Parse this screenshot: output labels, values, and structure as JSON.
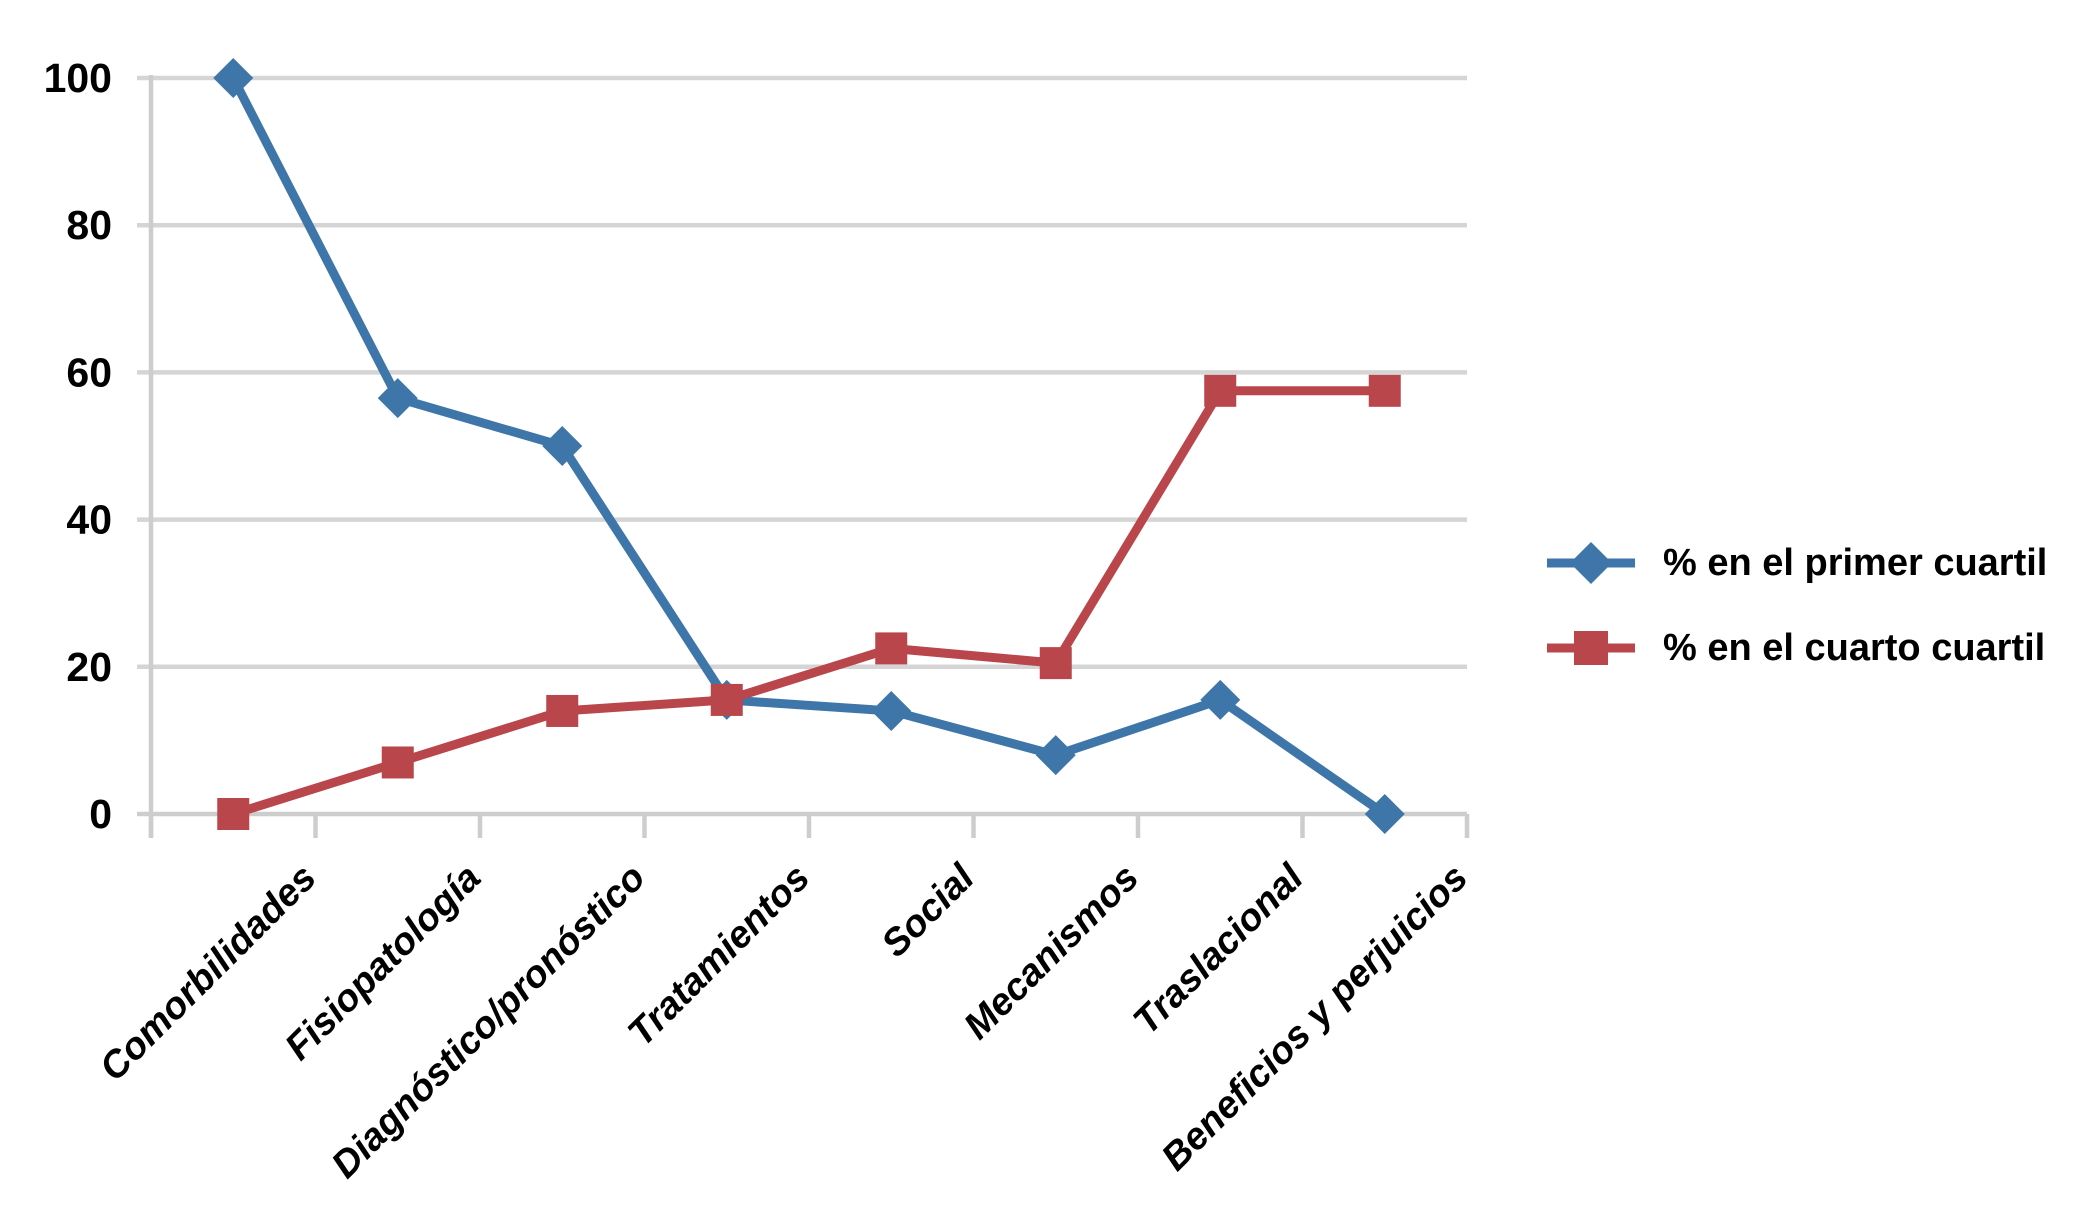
{
  "chart_data": {
    "type": "line",
    "title": "",
    "categories": [
      "Comorbilidades",
      "Fisiopatología",
      "Diagnóstico/pronóstico",
      "Tratamientos",
      "Social",
      "Mecanismos",
      "Traslacional",
      "Beneficios y perjuicios"
    ],
    "series": [
      {
        "name": "% en el primer cuartil",
        "marker": "diamond",
        "color": "#3E76AA",
        "values": [
          100,
          56.5,
          50,
          15.5,
          14,
          8,
          15.5,
          0
        ]
      },
      {
        "name": "% en el cuarto cuartil",
        "marker": "square",
        "color": "#B9464B",
        "values": [
          0,
          7,
          14,
          15.5,
          22.5,
          20.5,
          57.5,
          57.5
        ]
      }
    ],
    "xlabel": "",
    "ylabel": "",
    "y_axis": {
      "ticks": [
        0,
        20,
        40,
        60,
        80,
        100
      ],
      "range": [
        0,
        100
      ]
    },
    "x_axis": {
      "label_rotation_deg": -45
    },
    "grid": true,
    "legend_position": "right",
    "colors": {
      "gridline": "#D5D5D5",
      "axis": "#CDCDCD",
      "text": "#000000",
      "background": "#FFFFFF"
    }
  }
}
